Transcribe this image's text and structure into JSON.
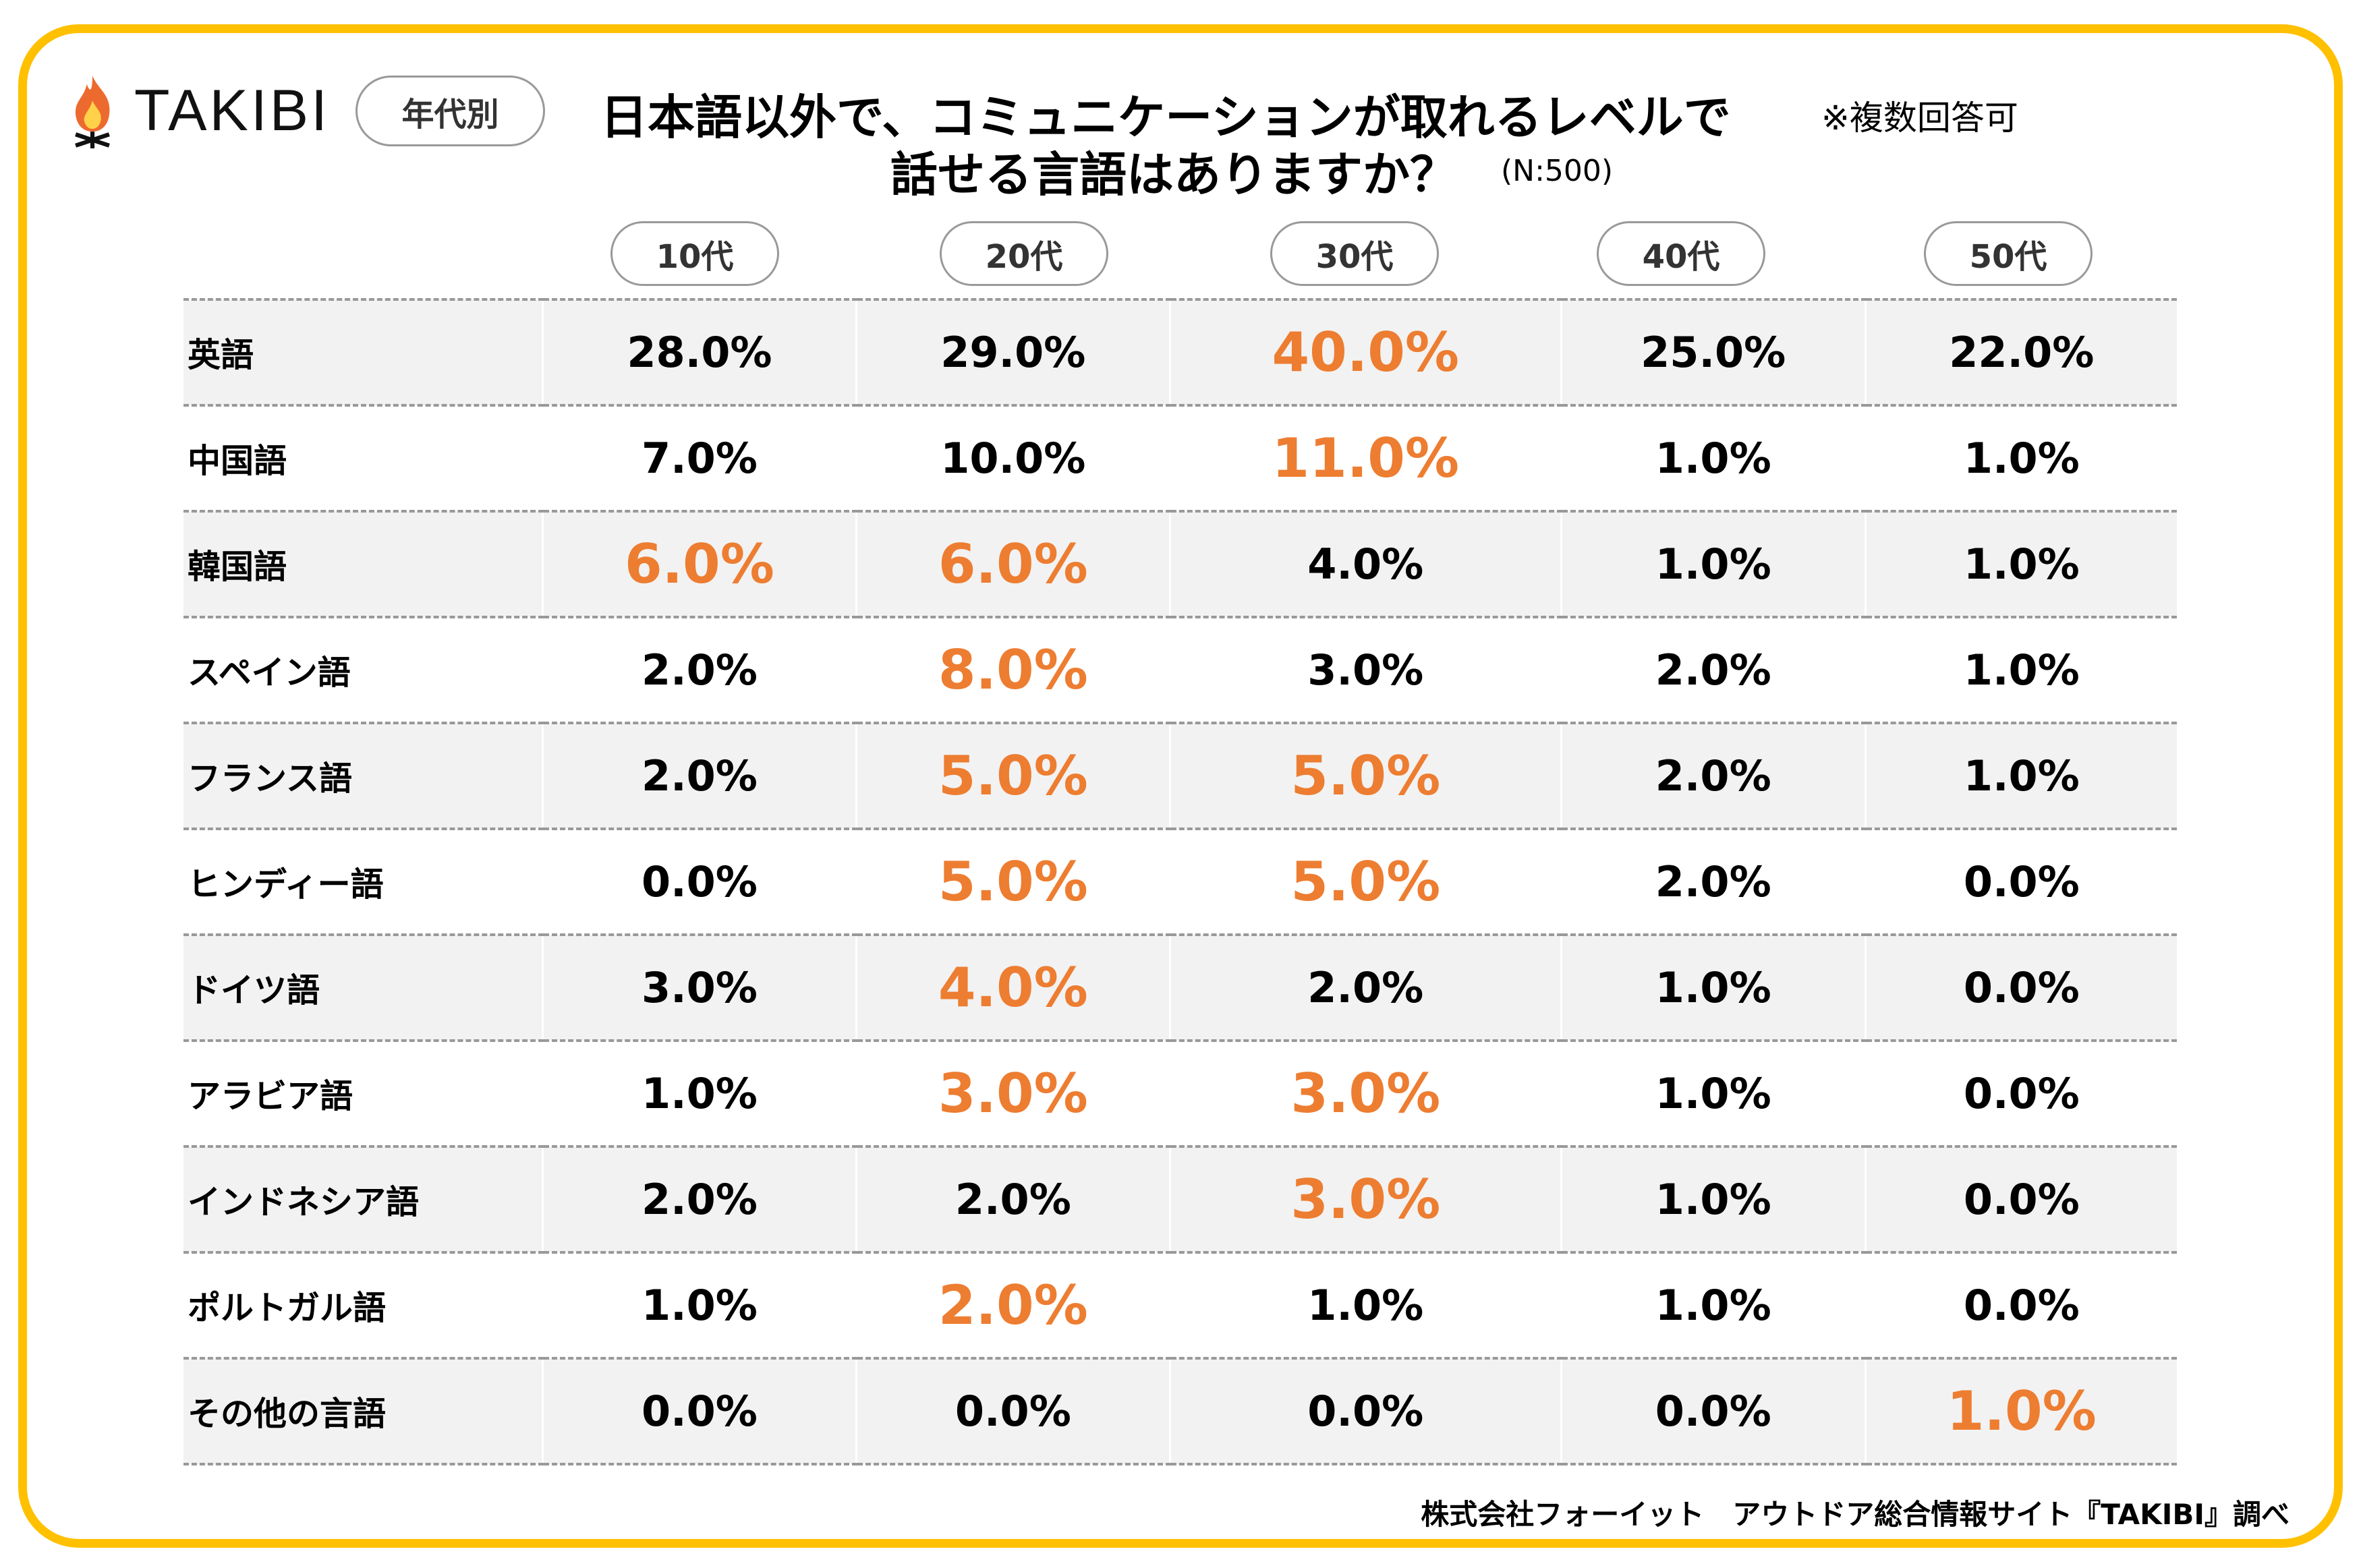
{
  "brand": {
    "logo_text": "TAKIBI",
    "accent": "#FFC000",
    "highlight": "#ED7D31"
  },
  "header": {
    "tag": "年代別",
    "title_line1": "日本語以外で、コミュニケーションが取れるレベルで",
    "title_line2": "話せる言語はありますか？",
    "note": "※複数回答可",
    "sample": "(N:500)"
  },
  "table": {
    "columns": [
      "10代",
      "20代",
      "30代",
      "40代",
      "50代"
    ],
    "rows": [
      {
        "label": "英語",
        "values": [
          "28.0%",
          "29.0%",
          "40.0%",
          "25.0%",
          "22.0%"
        ],
        "highlight": [
          false,
          false,
          true,
          false,
          false
        ]
      },
      {
        "label": "中国語",
        "values": [
          "7.0%",
          "10.0%",
          "11.0%",
          "1.0%",
          "1.0%"
        ],
        "highlight": [
          false,
          false,
          true,
          false,
          false
        ]
      },
      {
        "label": "韓国語",
        "values": [
          "6.0%",
          "6.0%",
          "4.0%",
          "1.0%",
          "1.0%"
        ],
        "highlight": [
          true,
          true,
          false,
          false,
          false
        ]
      },
      {
        "label": "スペイン語",
        "values": [
          "2.0%",
          "8.0%",
          "3.0%",
          "2.0%",
          "1.0%"
        ],
        "highlight": [
          false,
          true,
          false,
          false,
          false
        ]
      },
      {
        "label": "フランス語",
        "values": [
          "2.0%",
          "5.0%",
          "5.0%",
          "2.0%",
          "1.0%"
        ],
        "highlight": [
          false,
          true,
          true,
          false,
          false
        ]
      },
      {
        "label": "ヒンディー語",
        "values": [
          "0.0%",
          "5.0%",
          "5.0%",
          "2.0%",
          "0.0%"
        ],
        "highlight": [
          false,
          true,
          true,
          false,
          false
        ]
      },
      {
        "label": "ドイツ語",
        "values": [
          "3.0%",
          "4.0%",
          "2.0%",
          "1.0%",
          "0.0%"
        ],
        "highlight": [
          false,
          true,
          false,
          false,
          false
        ]
      },
      {
        "label": "アラビア語",
        "values": [
          "1.0%",
          "3.0%",
          "3.0%",
          "1.0%",
          "0.0%"
        ],
        "highlight": [
          false,
          true,
          true,
          false,
          false
        ]
      },
      {
        "label": "インドネシア語",
        "values": [
          "2.0%",
          "2.0%",
          "3.0%",
          "1.0%",
          "0.0%"
        ],
        "highlight": [
          false,
          false,
          true,
          false,
          false
        ]
      },
      {
        "label": "ポルトガル語",
        "values": [
          "1.0%",
          "2.0%",
          "1.0%",
          "1.0%",
          "0.0%"
        ],
        "highlight": [
          false,
          true,
          false,
          false,
          false
        ]
      },
      {
        "label": "その他の言語",
        "values": [
          "0.0%",
          "0.0%",
          "0.0%",
          "0.0%",
          "1.0%"
        ],
        "highlight": [
          false,
          false,
          false,
          false,
          true
        ]
      }
    ]
  },
  "footer": {
    "credit": "株式会社フォーイット　アウトドア総合情報サイト『TAKIBI』調べ"
  }
}
